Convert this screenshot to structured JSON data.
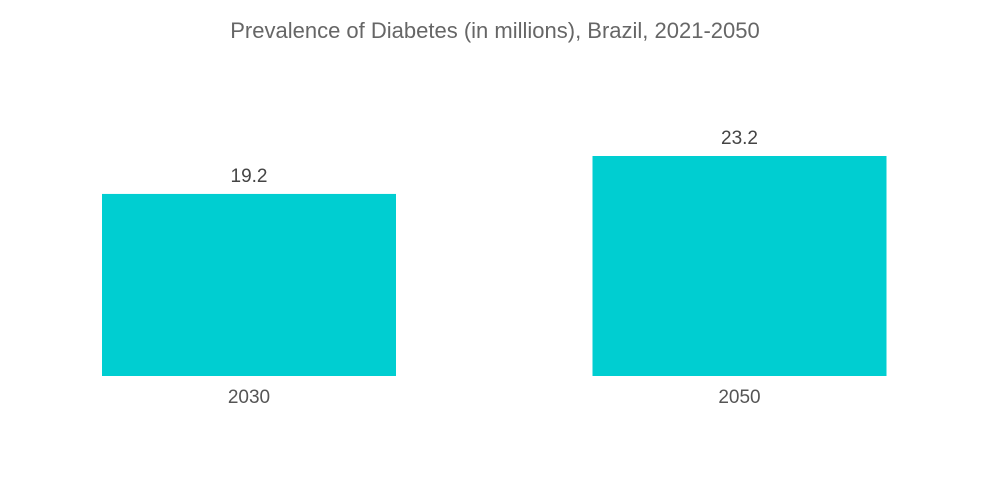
{
  "chart_data": {
    "type": "bar",
    "title": "Prevalence of Diabetes (in millions), Brazil, 2021-2050",
    "categories": [
      "2030",
      "2050"
    ],
    "values": [
      19.2,
      23.2
    ],
    "data_labels": [
      "19.2",
      "23.2"
    ],
    "xlabel": "",
    "ylabel": "",
    "ylim": [
      0,
      23.2
    ],
    "grid": false,
    "legend": "none",
    "bar_color": "#00CED1"
  }
}
